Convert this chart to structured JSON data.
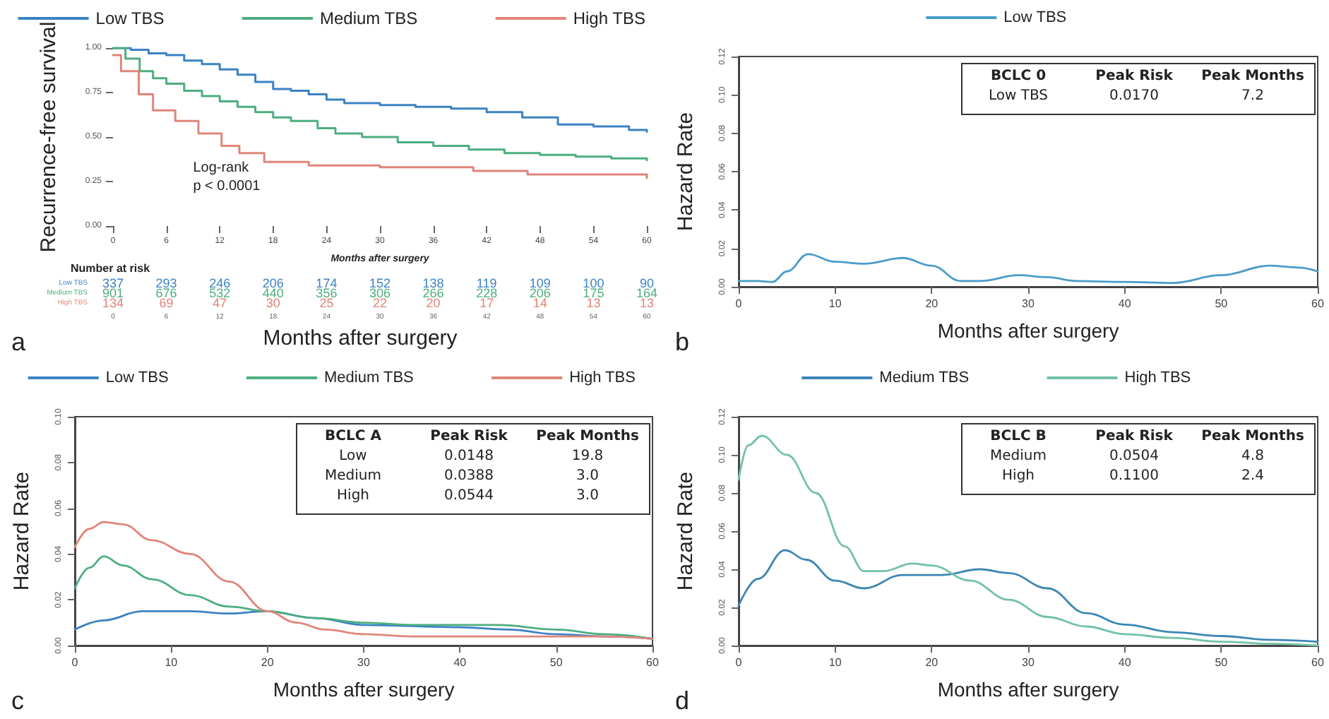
{
  "chart_data": [
    {
      "type": "step",
      "ylabel": "Recurrence-free survival",
      "xlabel": "Months after surgery",
      "legend": "top",
      "grid": false,
      "xlim": [
        0,
        60
      ],
      "xticks": [
        0,
        6,
        12,
        18,
        24,
        30,
        36,
        42,
        48,
        54,
        60
      ],
      "ylim": [
        0,
        1
      ],
      "yticks": [
        {
          "value": 0,
          "label": "0.00"
        },
        {
          "value": 0.25,
          "label": "0.25"
        },
        {
          "value": 0.5,
          "label": "0.50"
        },
        {
          "value": 0.75,
          "label": "0.75"
        },
        {
          "value": 1,
          "label": "1.00"
        }
      ],
      "series": [
        {
          "name": "Low TBS",
          "color": "#3b82c4",
          "x": [
            0,
            2,
            4,
            6,
            8,
            10,
            12,
            14,
            16,
            18,
            20,
            22,
            24,
            26,
            30,
            34,
            38,
            42,
            46,
            50,
            54,
            58,
            60
          ],
          "values": [
            1,
            0.99,
            0.97,
            0.96,
            0.93,
            0.91,
            0.88,
            0.85,
            0.81,
            0.77,
            0.76,
            0.74,
            0.71,
            0.69,
            0.68,
            0.67,
            0.66,
            0.64,
            0.61,
            0.57,
            0.56,
            0.54,
            0.53
          ]
        },
        {
          "name": "Medium TBS",
          "color": "#4cae7e",
          "x": [
            0,
            1.4,
            3,
            4.5,
            6,
            8,
            10,
            12,
            14,
            16,
            18,
            20,
            23,
            25,
            28,
            32,
            36,
            40,
            44,
            48,
            52,
            56,
            60
          ],
          "values": [
            1,
            0.94,
            0.87,
            0.83,
            0.8,
            0.76,
            0.73,
            0.7,
            0.67,
            0.64,
            0.61,
            0.59,
            0.55,
            0.52,
            0.5,
            0.47,
            0.45,
            0.43,
            0.41,
            0.4,
            0.39,
            0.38,
            0.37
          ]
        },
        {
          "name": "High TBS",
          "color": "#e0857a",
          "x": [
            0,
            0.9,
            2.9,
            4.5,
            7,
            9.6,
            12.2,
            14.2,
            17,
            22,
            30,
            40.5,
            46.6,
            60
          ],
          "values": [
            0.96,
            0.87,
            0.74,
            0.65,
            0.59,
            0.52,
            0.45,
            0.41,
            0.36,
            0.34,
            0.33,
            0.31,
            0.29,
            0.27
          ]
        }
      ],
      "annotations": [
        "a",
        "Log-rank",
        "p < 0.0001",
        "Number at risk",
        "Months after surgery",
        "Low TBS",
        "Medium TBS",
        "High TBS",
        "337",
        "293",
        "246",
        "206",
        "174",
        "152",
        "138",
        "119",
        "109",
        "100",
        "90",
        "901",
        "676",
        "532",
        "440",
        "356",
        "306",
        "266",
        "228",
        "206",
        "175",
        "164",
        "134",
        "69",
        "47",
        "30",
        "25",
        "22",
        "20",
        "17",
        "14",
        "13",
        "13",
        "0",
        "6",
        "12",
        "18",
        "24",
        "30",
        "36",
        "42",
        "48",
        "54",
        "60"
      ]
    },
    {
      "type": "line",
      "ylabel": "Hazard Rate",
      "xlabel": "Months after surgery",
      "legend": "top",
      "grid": false,
      "xlim": [
        0,
        60
      ],
      "xticks": [
        0,
        10,
        20,
        30,
        40,
        50,
        60
      ],
      "ylim": [
        0,
        0.12
      ],
      "yticks": [
        {
          "value": 0,
          "label": "0.00"
        },
        {
          "value": 0.02,
          "label": "0.02"
        },
        {
          "value": 0.04,
          "label": "0.04"
        },
        {
          "value": 0.06,
          "label": "0.06"
        },
        {
          "value": 0.08,
          "label": "0.08"
        },
        {
          "value": 0.1,
          "label": "0.10"
        },
        {
          "value": 0.12,
          "label": "0.12"
        }
      ],
      "series": [
        {
          "name": "Low TBS",
          "color": "#4a9cc7",
          "x": [
            0,
            2,
            3.5,
            5,
            7.2,
            10,
            13,
            17,
            20,
            23,
            25,
            29,
            32,
            35,
            40,
            45,
            50,
            55,
            58,
            60
          ],
          "values": [
            0.003,
            0.003,
            0.0025,
            0.008,
            0.017,
            0.013,
            0.012,
            0.015,
            0.011,
            0.003,
            0.003,
            0.006,
            0.005,
            0.003,
            0.0025,
            0.002,
            0.006,
            0.011,
            0.01,
            0.008
          ]
        }
      ],
      "annotations": [
        "b",
        "BCLC 0",
        "Peak Risk",
        "Peak Months",
        "Low TBS",
        "0.0170",
        "7.2"
      ]
    },
    {
      "type": "line",
      "ylabel": "Hazard Rate",
      "xlabel": "Months after surgery",
      "legend": "top",
      "grid": false,
      "xlim": [
        0,
        60
      ],
      "xticks": [
        0,
        10,
        20,
        30,
        40,
        50,
        60
      ],
      "ylim": [
        0,
        0.1
      ],
      "yticks": [
        {
          "value": 0,
          "label": "0.00"
        },
        {
          "value": 0.02,
          "label": "0.02"
        },
        {
          "value": 0.04,
          "label": "0.04"
        },
        {
          "value": 0.06,
          "label": "0.06"
        },
        {
          "value": 0.08,
          "label": "0.08"
        },
        {
          "value": 0.1,
          "label": "0.10"
        }
      ],
      "series": [
        {
          "name": "Low TBS",
          "color": "#3b82c4",
          "x": [
            0,
            3,
            7,
            12,
            16,
            19.8,
            25,
            30,
            40,
            45,
            50,
            55,
            60
          ],
          "values": [
            0.007,
            0.011,
            0.015,
            0.015,
            0.014,
            0.015,
            0.012,
            0.009,
            0.008,
            0.007,
            0.005,
            0.004,
            0.003
          ]
        },
        {
          "name": "Medium TBS",
          "color": "#4cae7e",
          "x": [
            0,
            1.5,
            3,
            5,
            8,
            12,
            16,
            20,
            25,
            30,
            35,
            44,
            50,
            55,
            60
          ],
          "values": [
            0.025,
            0.034,
            0.039,
            0.035,
            0.029,
            0.022,
            0.017,
            0.015,
            0.012,
            0.01,
            0.009,
            0.009,
            0.007,
            0.005,
            0.003
          ]
        },
        {
          "name": "High TBS",
          "color": "#e0857a",
          "x": [
            0,
            1.5,
            3,
            5,
            8,
            12,
            16,
            20,
            23,
            26,
            30,
            35,
            40,
            50,
            55,
            60
          ],
          "values": [
            0.043,
            0.051,
            0.054,
            0.053,
            0.046,
            0.04,
            0.028,
            0.015,
            0.01,
            0.007,
            0.005,
            0.004,
            0.004,
            0.004,
            0.004,
            0.003
          ]
        }
      ],
      "annotations": [
        "c",
        "BCLC A",
        "Peak Risk",
        "Peak Months",
        "Low",
        "0.0148",
        "19.8",
        "Medium",
        "0.0388",
        "3.0",
        "High",
        "0.0544",
        "3.0"
      ]
    },
    {
      "type": "line",
      "ylabel": "Hazard Rate",
      "xlabel": "Months after surgery",
      "legend": "top",
      "grid": false,
      "xlim": [
        0,
        60
      ],
      "xticks": [
        0,
        10,
        20,
        30,
        40,
        50,
        60
      ],
      "ylim": [
        0,
        0.12
      ],
      "yticks": [
        {
          "value": 0,
          "label": "0.00"
        },
        {
          "value": 0.02,
          "label": "0.02"
        },
        {
          "value": 0.04,
          "label": "0.04"
        },
        {
          "value": 0.06,
          "label": "0.06"
        },
        {
          "value": 0.08,
          "label": "0.08"
        },
        {
          "value": 0.1,
          "label": "0.10"
        },
        {
          "value": 0.12,
          "label": "0.12"
        }
      ],
      "series": [
        {
          "name": "Medium TBS",
          "color": "#3c86b5",
          "x": [
            0,
            2,
            4.8,
            7,
            10,
            13,
            17,
            21,
            25,
            28,
            32,
            36,
            40,
            45,
            50,
            55,
            60
          ],
          "values": [
            0.021,
            0.035,
            0.05,
            0.045,
            0.034,
            0.03,
            0.037,
            0.037,
            0.04,
            0.038,
            0.03,
            0.017,
            0.011,
            0.007,
            0.005,
            0.003,
            0.002
          ]
        },
        {
          "name": "High TBS",
          "color": "#72c2a6",
          "x": [
            0,
            1,
            2.4,
            5,
            8,
            11,
            13,
            15,
            18,
            20,
            24,
            28,
            32,
            36,
            40,
            45,
            50,
            55,
            60
          ],
          "values": [
            0.087,
            0.105,
            0.11,
            0.1,
            0.08,
            0.052,
            0.039,
            0.039,
            0.043,
            0.042,
            0.034,
            0.024,
            0.015,
            0.01,
            0.006,
            0.004,
            0.002,
            0.001,
            0
          ]
        }
      ],
      "annotations": [
        "d",
        "BCLC B",
        "Peak Risk",
        "Peak Months",
        "Medium",
        "0.0504",
        "4.8",
        "High",
        "0.1100",
        "2.4"
      ]
    }
  ]
}
